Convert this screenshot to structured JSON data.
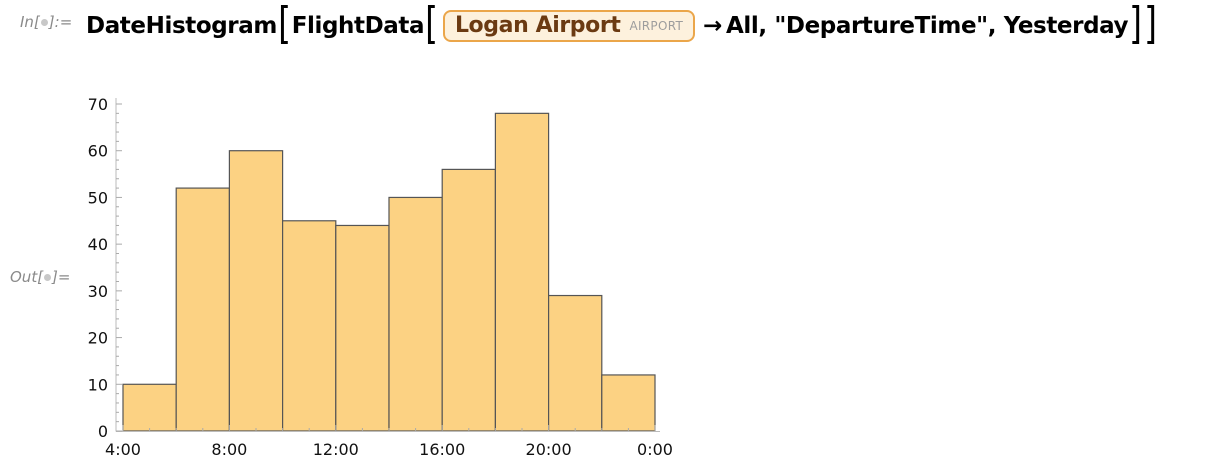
{
  "cell": {
    "in_label": "In[",
    "in_label_end": "]:=",
    "out_label": "Out[",
    "out_label_end": "]="
  },
  "input": {
    "func": "DateHistogram",
    "inner_func": "FlightData",
    "entity_name": "Logan Airport",
    "entity_type": "AIRPORT",
    "arrow": "→",
    "rule_value": "All",
    "property": "\"DepartureTime\"",
    "date": "Yesterday",
    "comma": ","
  },
  "colors": {
    "bar_fill": "#fcd283",
    "bar_stroke": "#555555",
    "entity_border": "#eba64a",
    "entity_bg": "#fdf1dd",
    "entity_text": "#6b3a12"
  },
  "chart_data": {
    "type": "bar",
    "title": "",
    "xlabel": "",
    "ylabel": "",
    "x_tick_labels": [
      "4:00",
      "8:00",
      "12:00",
      "16:00",
      "20:00",
      "0:00"
    ],
    "bin_edges_hours": [
      4,
      6,
      8,
      10,
      12,
      14,
      16,
      18,
      20,
      22,
      24
    ],
    "values": [
      10,
      52,
      60,
      45,
      44,
      50,
      56,
      68,
      29,
      12
    ],
    "ylim": [
      0,
      70
    ],
    "y_ticks": [
      0,
      10,
      20,
      30,
      40,
      50,
      60,
      70
    ],
    "grid": false
  }
}
